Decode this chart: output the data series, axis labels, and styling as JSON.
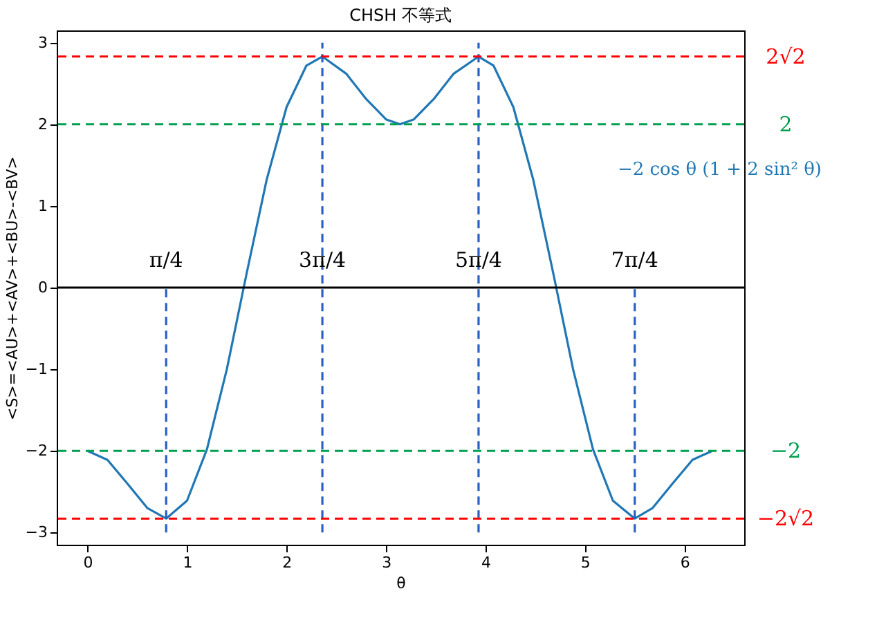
{
  "chart_data": {
    "type": "line",
    "title": "CHSH 不等式",
    "xlabel": "θ",
    "ylabel": "<S>=<AU>+<AV>+<BU>-<BV>",
    "xlim": [
      -0.31,
      6.6
    ],
    "xticks": [
      0,
      1,
      2,
      3,
      4,
      5,
      6
    ],
    "ylim": [
      -3.15,
      3.15
    ],
    "yticks": [
      {
        "value": -3,
        "label": "−3"
      },
      {
        "value": -2,
        "label": "−2"
      },
      {
        "value": -1,
        "label": "−1"
      },
      0,
      1,
      2,
      3
    ],
    "grid": false,
    "marker": "none",
    "series": [
      {
        "name": "−2 cos θ (1 + 2 sin² θ)",
        "color": "#1f77b4",
        "line_style": "solid",
        "x": [
          0,
          0.2,
          0.4,
          0.6,
          0.79,
          1.0,
          1.2,
          1.4,
          1.6,
          1.8,
          2.0,
          2.2,
          2.36,
          2.6,
          2.8,
          3.0,
          3.14,
          3.28,
          3.48,
          3.68,
          3.93,
          4.08,
          4.28,
          4.48,
          4.68,
          4.88,
          5.08,
          5.28,
          5.5,
          5.68,
          5.88,
          6.08,
          6.28
        ],
        "values": [
          -2.0,
          -2.11,
          -2.4,
          -2.7,
          -2.83,
          -2.61,
          -1.98,
          -1.0,
          0.18,
          1.32,
          2.21,
          2.72,
          2.83,
          2.62,
          2.31,
          2.06,
          2.0,
          2.06,
          2.31,
          2.62,
          2.83,
          2.72,
          2.21,
          1.32,
          0.18,
          -1.0,
          -1.98,
          -2.61,
          -2.83,
          -2.7,
          -2.4,
          -2.11,
          -2.0
        ]
      },
      {
        "type": "line",
        "color": "#2a5fc4",
        "line_style": "dashed",
        "x": [
          0.79,
          0.79
        ],
        "values": [
          -3,
          0
        ]
      },
      {
        "type": "line",
        "color": "#2a5fc4",
        "line_style": "dashed",
        "x": [
          2.36,
          2.36
        ],
        "values": [
          -3,
          3
        ]
      },
      {
        "type": "line",
        "color": "#2a5fc4",
        "line_style": "dashed",
        "x": [
          3.93,
          3.93
        ],
        "values": [
          -3,
          3
        ]
      },
      {
        "type": "line",
        "color": "#2a5fc4",
        "line_style": "dashed",
        "x": [
          5.5,
          5.5
        ],
        "values": [
          -3,
          0
        ]
      }
    ],
    "ref_lines": [
      {
        "axis": "y",
        "value": 2.83,
        "label": "2√2",
        "color": "#ff0000",
        "line_style": "dashed"
      },
      {
        "axis": "y",
        "value": 2,
        "label": "2",
        "color": "#00a050",
        "line_style": "dashed"
      },
      {
        "axis": "y",
        "value": 0,
        "color": "#000000",
        "line_style": "solid"
      },
      {
        "axis": "y",
        "value": -2,
        "label": "−2",
        "color": "#00a050",
        "line_style": "dashed"
      },
      {
        "axis": "y",
        "value": -2.83,
        "label": "−2√2",
        "color": "#ff0000",
        "line_style": "dashed"
      }
    ],
    "annotations": [
      {
        "text": "π/4",
        "x": 0.79,
        "y": 0
      },
      {
        "text": "3π/4",
        "x": 2.36,
        "y": 0
      },
      {
        "text": "5π/4",
        "x": 3.93,
        "y": 0
      },
      {
        "text": "7π/4",
        "x": 5.5,
        "y": 0
      }
    ]
  }
}
